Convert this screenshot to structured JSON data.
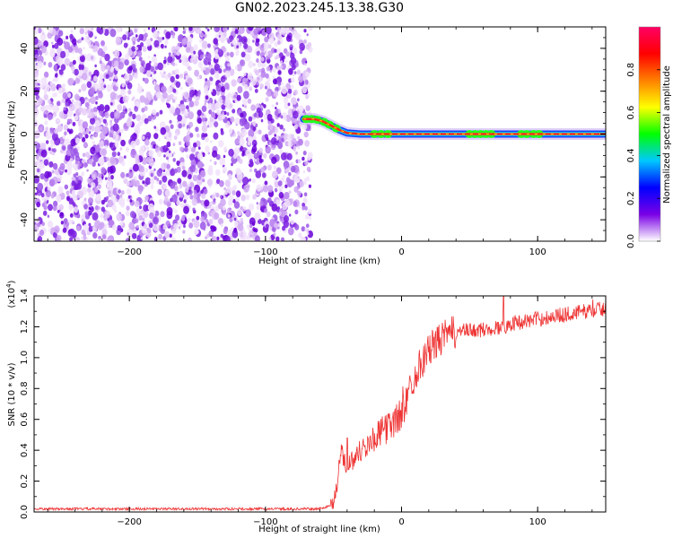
{
  "title": "GN02.2023.245.13.38.G30",
  "chart_data": [
    {
      "type": "heatmap",
      "title": "",
      "xlabel": "Height of straight line (km)",
      "ylabel": "Frequency (Hz)",
      "xlim": [
        -270,
        150
      ],
      "ylim": [
        -50,
        50
      ],
      "xticks": [
        -200,
        -100,
        0,
        100
      ],
      "yticks": [
        -40,
        -20,
        0,
        20,
        40
      ],
      "noise_region_x": [
        -270,
        -67
      ],
      "tone_frequency": 0,
      "tone_path": [
        [
          -72,
          7
        ],
        [
          -64,
          7
        ],
        [
          -58,
          6
        ],
        [
          -52,
          4
        ],
        [
          -46,
          2
        ],
        [
          -40,
          0.5
        ],
        [
          -30,
          0
        ],
        [
          150,
          0
        ]
      ],
      "colormap": [
        "#ffffff",
        "#7a00e6",
        "#0000ff",
        "#00c8ff",
        "#00ff00",
        "#ffff00",
        "#ff8000",
        "#ff0000",
        "#ff0066"
      ],
      "colorbar": {
        "label": "Normalized spectral amplitude",
        "ticks": [
          "0.0",
          "0.2",
          "0.4",
          "0.6",
          "0.8"
        ],
        "range": [
          0,
          1
        ]
      }
    },
    {
      "type": "line",
      "title": "",
      "xlabel": "Height of straight line (km)",
      "ylabel": "SNR (10 * v/v)",
      "multiplier_label": "(x10",
      "multiplier_exp": "4",
      "multiplier_close": ")",
      "xlim": [
        -270,
        150
      ],
      "ylim": [
        0,
        1.4
      ],
      "xticks": [
        -200,
        -100,
        0,
        100
      ],
      "yticks": [
        "0.0",
        "0.2",
        "0.4",
        "0.6",
        "0.8",
        "1.0",
        "1.2",
        "1.4"
      ],
      "line_color": "#ee3333",
      "series": [
        {
          "x": [
            -270,
            -200,
            -120,
            -60,
            -50,
            -47,
            -45,
            -40,
            -30,
            -20,
            -10,
            0,
            10,
            20,
            30,
            40,
            60,
            75,
            80,
            100,
            120,
            150
          ],
          "values": [
            0.02,
            0.02,
            0.02,
            0.02,
            0.05,
            0.2,
            0.4,
            0.3,
            0.4,
            0.48,
            0.55,
            0.63,
            0.9,
            1.05,
            1.13,
            1.17,
            1.18,
            1.2,
            1.22,
            1.25,
            1.28,
            1.32
          ]
        }
      ]
    }
  ]
}
